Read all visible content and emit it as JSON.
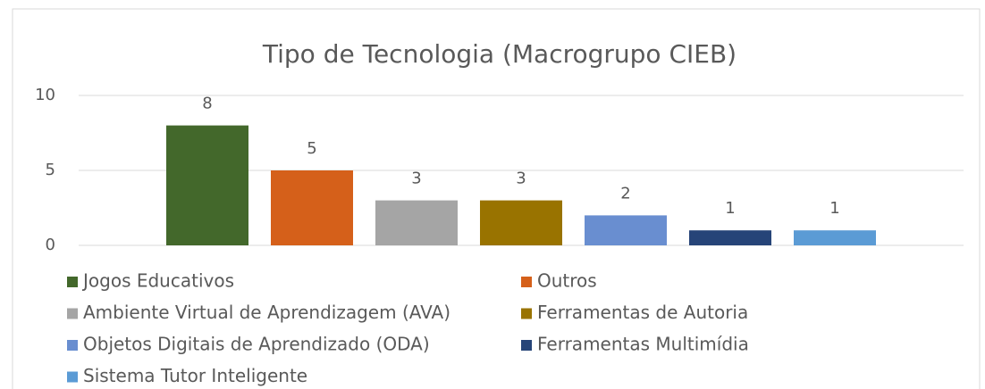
{
  "chart_data": {
    "type": "bar",
    "title": "Tipo de Tecnologia (Macrogrupo CIEB)",
    "categories": [
      null
    ],
    "series": [
      {
        "name": "Jogos Educativos",
        "color": "#43682b",
        "values": [
          8
        ]
      },
      {
        "name": "Outros",
        "color": "#d5601a",
        "values": [
          5
        ]
      },
      {
        "name": "Ambiente Virtual de Aprendizagem (AVA)",
        "color": "#a5a5a5",
        "values": [
          3
        ]
      },
      {
        "name": "Ferramentas de Autoria",
        "color": "#997300",
        "values": [
          3
        ]
      },
      {
        "name": "Objetos Digitais de Aprendizado (ODA)",
        "color": "#698ed0",
        "values": [
          2
        ]
      },
      {
        "name": "Ferramentas Multimídia",
        "color": "#264478",
        "values": [
          1
        ]
      },
      {
        "name": "Sistema Tutor Inteligente",
        "color": "#5b9bd5",
        "values": [
          1
        ]
      }
    ],
    "ylim": [
      0,
      10
    ],
    "yticks": [
      0,
      5,
      10
    ],
    "grid": true,
    "legend": "bottom"
  }
}
